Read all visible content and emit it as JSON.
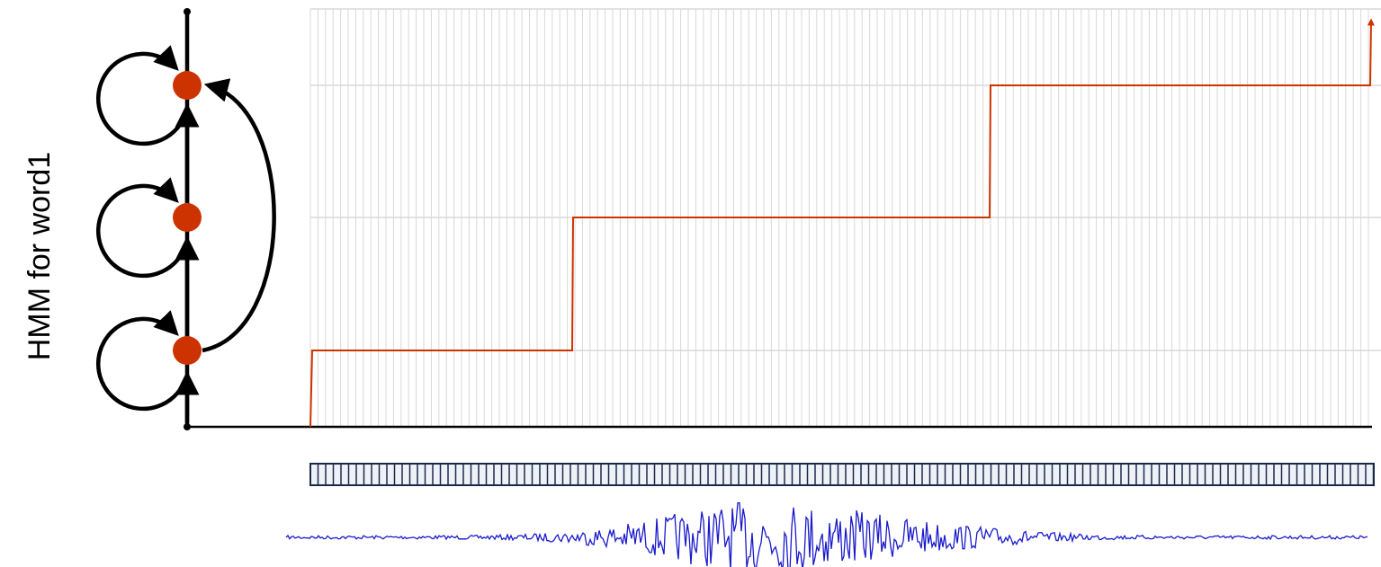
{
  "diagram": {
    "label": "HMM for word1"
  }
}
